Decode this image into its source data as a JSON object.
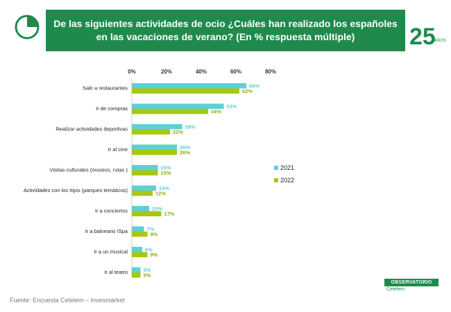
{
  "header": {
    "title": "De las siguientes actividades de ocio ¿Cuáles han realizado los españoles en las vacaciones de verano? (En % respuesta  múltiple)",
    "anniversary_number": "25",
    "anniversary_word": "AÑOS"
  },
  "footer": {
    "source": "Fuente: Encuesta Cetelem – Invesmarket"
  },
  "brand": {
    "name": "OBSERVATORIO",
    "sub": "Cetelem"
  },
  "colors": {
    "brand_green": "#1f8a4c",
    "series_2021": "#5fcfd3",
    "series_2022": "#a6c813",
    "label_2021": "#5fcfd3",
    "label_2022": "#8fae10"
  },
  "chart_data": {
    "type": "bar",
    "orientation": "horizontal",
    "title": "De las siguientes actividades de ocio ¿Cuáles han realizado los españoles en las vacaciones de verano? (En % respuesta  múltiple)",
    "categories": [
      "Salir a restaurantes",
      "Ir de compras",
      "Realizar actividades deportivas",
      "Ir al cine",
      "Visitas  culturales (museos, rutas )",
      "Actividades con los hijos (parques temáticos)",
      "Ir a conciertos",
      "Ir a balneario /Spa",
      "Ir a un musical",
      "Ir al teatro"
    ],
    "series": [
      {
        "name": "2021",
        "values": [
          66,
          53,
          29,
          26,
          15,
          14,
          10,
          7,
          6,
          5
        ]
      },
      {
        "name": "2022",
        "values": [
          62,
          44,
          22,
          26,
          15,
          12,
          17,
          9,
          9,
          5
        ]
      }
    ],
    "xlim": [
      0,
      80
    ],
    "xticks": [
      0,
      20,
      40,
      60,
      80
    ],
    "tick_format": "%",
    "legend": "right",
    "grid": false
  }
}
